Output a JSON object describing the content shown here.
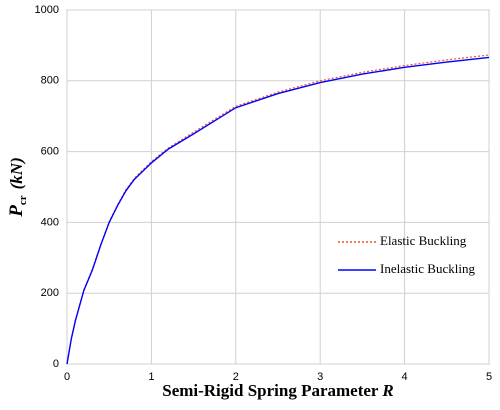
{
  "chart_data": {
    "type": "line",
    "x_label": "Semi-Rigid Spring Parameter",
    "x_label_var": "R",
    "y_label": "P",
    "y_label_sub": "cr",
    "y_label_unit": "(kN)",
    "x": [
      0,
      0.05,
      0.1,
      0.2,
      0.3,
      0.4,
      0.5,
      0.6,
      0.7,
      0.8,
      1.0,
      1.2,
      1.5,
      2,
      2.5,
      3,
      3.5,
      4,
      4.5,
      5
    ],
    "series": [
      {
        "name": "Elastic Buckling",
        "color": "#e8552b",
        "dash": true,
        "values": [
          0,
          70,
          124,
          210,
          268,
          338,
          402,
          450,
          493,
          525,
          572,
          610,
          655,
          728,
          768,
          800,
          824,
          843,
          859,
          873
        ]
      },
      {
        "name": "Inelastic Buckling",
        "color": "#0000ff",
        "dash": false,
        "values": [
          0,
          70,
          123,
          208,
          265,
          336,
          400,
          448,
          490,
          522,
          568,
          607,
          650,
          724,
          764,
          795,
          819,
          838,
          853,
          866
        ]
      }
    ],
    "xlim": [
      0,
      5
    ],
    "xticks": [
      0,
      1,
      2,
      3,
      4,
      5
    ],
    "ylim": [
      0,
      1000
    ],
    "yticks": [
      0,
      200,
      400,
      600,
      800,
      1000
    ],
    "grid": true,
    "legend": "right"
  }
}
